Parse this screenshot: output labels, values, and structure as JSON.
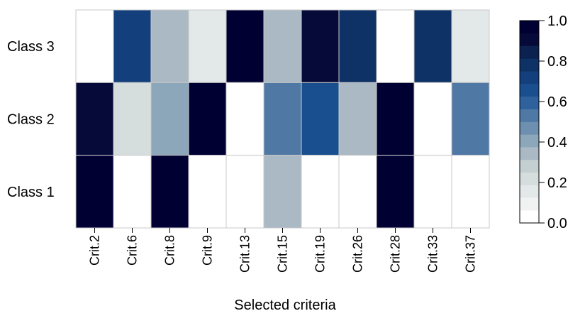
{
  "chart_data": {
    "type": "heatmap",
    "title": "",
    "xlabel": "Selected criteria",
    "ylabel": "",
    "columns": [
      "Crit.2",
      "Crit.6",
      "Crit.8",
      "Crit.9",
      "Crit.13",
      "Crit.15",
      "Crit.19",
      "Crit.26",
      "Crit.28",
      "Crit.33",
      "Crit.37"
    ],
    "rows": [
      "Class 3",
      "Class 2",
      "Class 1"
    ],
    "values": [
      [
        0.0,
        0.75,
        0.3,
        0.15,
        1.0,
        0.3,
        0.95,
        0.8,
        0.0,
        0.8,
        0.15
      ],
      [
        0.9,
        0.2,
        0.4,
        1.0,
        0.0,
        0.55,
        0.65,
        0.3,
        1.0,
        0.0,
        0.55
      ],
      [
        1.0,
        0.0,
        1.0,
        0.0,
        0.0,
        0.3,
        0.0,
        0.0,
        1.0,
        0.0,
        0.0
      ]
    ],
    "colorbar": {
      "range": [
        0.0,
        1.0
      ],
      "ticks": [
        "0.0",
        "0.2",
        "0.4",
        "0.6",
        "0.8",
        "1.0"
      ],
      "tick_values": [
        0.0,
        0.2,
        0.4,
        0.6,
        0.8,
        1.0
      ],
      "palette": [
        "#ffffff",
        "#f1f3f3",
        "#e3e8e8",
        "#d5dddd",
        "#c4cfd1",
        "#aab9c3",
        "#8ca7ba",
        "#6d8fb0",
        "#4f78a5",
        "#2f619c",
        "#1a4f8f",
        "#13407d",
        "#0e3166",
        "#0b214f",
        "#050a38",
        "#000033"
      ]
    },
    "grid": true
  }
}
